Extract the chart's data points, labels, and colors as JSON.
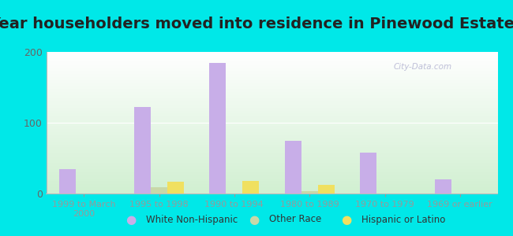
{
  "title": "Year householders moved into residence in Pinewood Estates",
  "categories": [
    "1999 to March\n2000",
    "1995 to 1998",
    "1990 to 1994",
    "1980 to 1989",
    "1970 to 1979",
    "1969 or earlier"
  ],
  "white_non_hispanic": [
    35,
    122,
    184,
    74,
    58,
    20
  ],
  "other_race": [
    0,
    9,
    0,
    3,
    0,
    0
  ],
  "hispanic_or_latino": [
    0,
    17,
    18,
    12,
    0,
    0
  ],
  "colors": {
    "white_non_hispanic": "#c8aee8",
    "other_race": "#c8d8a8",
    "hispanic_or_latino": "#f0e060"
  },
  "background_outer": "#00e8e8",
  "ylim": [
    0,
    200
  ],
  "yticks": [
    0,
    100,
    200
  ],
  "bar_width": 0.22,
  "legend_labels": [
    "White Non-Hispanic",
    "Other Race",
    "Hispanic or Latino"
  ],
  "watermark": "City-Data.com",
  "title_fontsize": 14,
  "tick_fontsize": 8
}
